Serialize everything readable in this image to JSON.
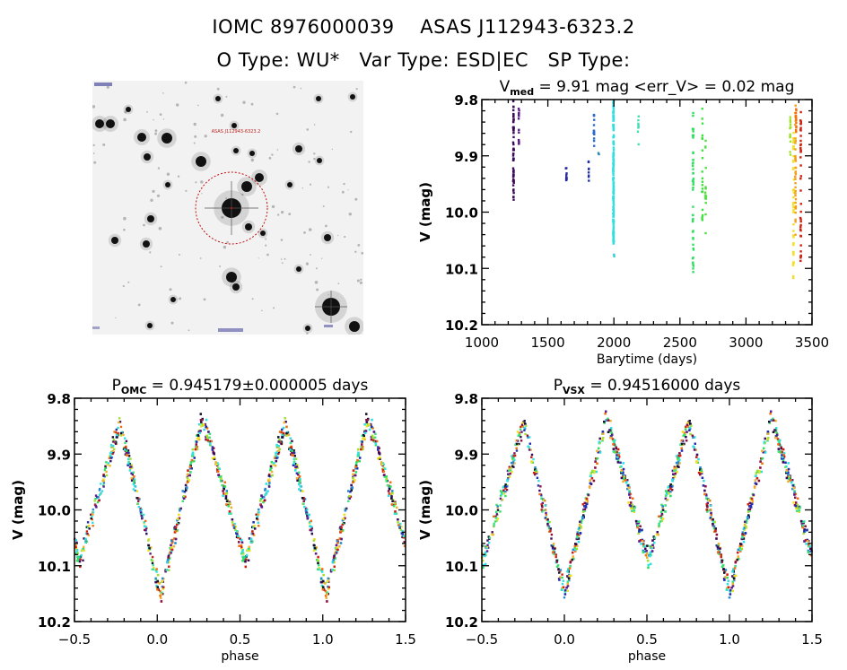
{
  "header": {
    "line1": "IOMC 8976000039    ASAS J112943-6323.2",
    "line2": "O Type: WU*   Var Type: ESD|EC   SP Type:"
  },
  "image_panel": {
    "description": "DSS finder chart, inverted grayscale star field",
    "target_marker": "red dashed circle around central star",
    "target_label": "ASAS J112943-6323.2"
  },
  "chart_data": [
    {
      "id": "lightcurve",
      "type": "scatter",
      "title_main": "V",
      "title_sub": "med",
      "title_rest": " = 9.91 mag <err_V> = 0.02 mag",
      "xlabel": "Barytime (days)",
      "ylabel": "V (mag)",
      "xlim": [
        1000,
        3500
      ],
      "ylim": [
        10.2,
        9.8
      ],
      "y_inverted": true,
      "xticks": [
        1000,
        1500,
        2000,
        2500,
        3000,
        3500
      ],
      "xtick_labels": [
        "1000",
        "1500",
        "2000",
        "2500",
        "3000",
        "3500"
      ],
      "yticks": [
        9.8,
        9.9,
        10.0,
        10.1,
        10.2
      ],
      "ytick_labels": [
        "9.8",
        "9.9",
        "10.0",
        "10.1",
        "10.2"
      ],
      "x_minor": 100,
      "y_minor": 0.02,
      "clusters": [
        {
          "x": 1240,
          "ymin": 9.8,
          "ymax": 9.98,
          "n": 60,
          "color": "#3b0a5a"
        },
        {
          "x": 1280,
          "ymin": 9.81,
          "ymax": 9.88,
          "n": 14,
          "color": "#5a1a8a"
        },
        {
          "x": 1640,
          "ymin": 9.915,
          "ymax": 9.945,
          "n": 10,
          "color": "#2a2aa0"
        },
        {
          "x": 1810,
          "ymin": 9.91,
          "ymax": 9.96,
          "n": 8,
          "color": "#2030b0"
        },
        {
          "x": 1850,
          "ymin": 9.825,
          "ymax": 9.89,
          "n": 14,
          "color": "#2a6ad0"
        },
        {
          "x": 1885,
          "ymin": 9.895,
          "ymax": 9.9,
          "n": 2,
          "color": "#2a8ab0"
        },
        {
          "x": 1997,
          "ymin": 9.8,
          "ymax": 10.06,
          "n": 160,
          "color": "#30e0e0"
        },
        {
          "x": 2000,
          "ymin": 10.075,
          "ymax": 10.08,
          "n": 2,
          "color": "#30d0d0"
        },
        {
          "x": 2185,
          "ymin": 9.8,
          "ymax": 9.88,
          "n": 8,
          "color": "#40e0b0"
        },
        {
          "x": 2600,
          "ymin": 9.81,
          "ymax": 10.12,
          "n": 50,
          "color": "#30e060"
        },
        {
          "x": 2670,
          "ymin": 9.81,
          "ymax": 10.02,
          "n": 20,
          "color": "#40e040"
        },
        {
          "x": 2695,
          "ymin": 9.87,
          "ymax": 10.05,
          "n": 16,
          "color": "#50e040"
        },
        {
          "x": 3335,
          "ymin": 9.83,
          "ymax": 9.9,
          "n": 16,
          "color": "#a0e030"
        },
        {
          "x": 3360,
          "ymin": 9.84,
          "ymax": 10.12,
          "n": 40,
          "color": "#f0e020"
        },
        {
          "x": 3375,
          "ymin": 9.81,
          "ymax": 10.05,
          "n": 40,
          "color": "#f0a020"
        },
        {
          "x": 3380,
          "ymin": 9.81,
          "ymax": 9.86,
          "n": 12,
          "color": "#f07010"
        },
        {
          "x": 3415,
          "ymin": 9.82,
          "ymax": 10.09,
          "n": 40,
          "color": "#d02010"
        }
      ]
    },
    {
      "id": "phase_omc",
      "type": "scatter",
      "title_main": "P",
      "title_sub": "OMC",
      "title_rest": " = 0.945179±0.000005 days",
      "xlabel": "phase",
      "ylabel": "V (mag)",
      "xlim": [
        -0.5,
        1.5
      ],
      "ylim": [
        10.2,
        9.8
      ],
      "y_inverted": true,
      "period_days": 0.945179,
      "period_err_days": 5e-06,
      "xticks": [
        -0.5,
        0.0,
        0.5,
        1.0,
        1.5
      ],
      "xtick_labels": [
        "−0.5",
        "0.0",
        "0.5",
        "1.0",
        "1.5"
      ],
      "yticks": [
        9.8,
        9.9,
        10.0,
        10.1,
        10.2
      ],
      "ytick_labels": [
        "9.8",
        "9.9",
        "10.0",
        "10.1",
        "10.2"
      ],
      "x_minor": 0.1,
      "y_minor": 0.02,
      "curve": {
        "max_mag": 9.81,
        "primary_min_mag": 10.12,
        "secondary_min_mag": 10.06,
        "primary_min_phase": 0.02,
        "secondary_min_phase": 0.53,
        "scatter": 0.025
      },
      "colors": [
        "#30e0e0",
        "#30e0e0",
        "#40e080",
        "#30e060",
        "#a0e030",
        "#f0e020",
        "#f0b030",
        "#f07010",
        "#d02010",
        "#8a1040",
        "#3b0a5a",
        "#5a1a8a",
        "#2030b0",
        "#2a8ad0",
        "#101030"
      ],
      "n_points": 520
    },
    {
      "id": "phase_vsx",
      "type": "scatter",
      "title_main": "P",
      "title_sub": "VSX",
      "title_rest": " = 0.94516000 days",
      "xlabel": "phase",
      "ylabel": "V (mag)",
      "xlim": [
        -0.5,
        1.5
      ],
      "ylim": [
        10.2,
        9.8
      ],
      "y_inverted": true,
      "period_days": 0.94516,
      "xticks": [
        -0.5,
        0.0,
        0.5,
        1.0,
        1.5
      ],
      "xtick_labels": [
        "−0.5",
        "0.0",
        "0.5",
        "1.0",
        "1.5"
      ],
      "yticks": [
        9.8,
        9.9,
        10.0,
        10.1,
        10.2
      ],
      "ytick_labels": [
        "9.8",
        "9.9",
        "10.0",
        "10.1",
        "10.2"
      ],
      "x_minor": 0.1,
      "y_minor": 0.02,
      "curve": {
        "max_mag": 9.81,
        "primary_min_mag": 10.12,
        "secondary_min_mag": 10.06,
        "primary_min_phase": 0.0,
        "secondary_min_phase": 0.51,
        "scatter": 0.025
      },
      "colors": [
        "#30e0e0",
        "#30e0e0",
        "#40e080",
        "#30e060",
        "#a0e030",
        "#f0e020",
        "#f0b030",
        "#f07010",
        "#d02010",
        "#8a1040",
        "#3b0a5a",
        "#5a1a8a",
        "#2030b0",
        "#2a8ad0",
        "#101030"
      ],
      "n_points": 520
    }
  ]
}
